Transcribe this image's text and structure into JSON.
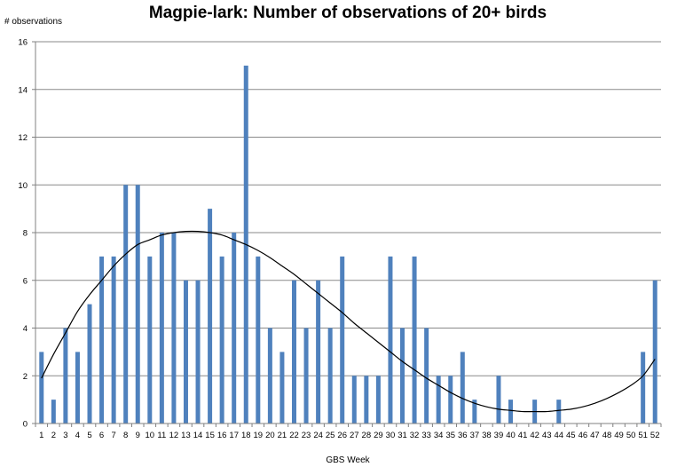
{
  "chart_data": {
    "type": "bar",
    "title": "Magpie-lark: Number of observations of 20+ birds",
    "xlabel": "GBS Week",
    "ylabel": "# observations",
    "ylim": [
      0,
      16
    ],
    "yticks": [
      0,
      2,
      4,
      6,
      8,
      10,
      12,
      14,
      16
    ],
    "grid": "horizontal",
    "legend": "none",
    "categories": [
      "1",
      "2",
      "3",
      "4",
      "5",
      "6",
      "7",
      "8",
      "9",
      "10",
      "11",
      "12",
      "13",
      "14",
      "15",
      "16",
      "17",
      "18",
      "19",
      "20",
      "21",
      "22",
      "23",
      "24",
      "25",
      "26",
      "27",
      "28",
      "29",
      "30",
      "31",
      "32",
      "33",
      "34",
      "35",
      "36",
      "37",
      "38",
      "39",
      "40",
      "41",
      "42",
      "43",
      "44",
      "45",
      "46",
      "47",
      "48",
      "49",
      "50",
      "51",
      "52"
    ],
    "values": [
      3,
      1,
      4,
      3,
      5,
      7,
      7,
      10,
      10,
      7,
      8,
      8,
      6,
      6,
      9,
      7,
      8,
      15,
      7,
      4,
      3,
      6,
      4,
      6,
      4,
      7,
      2,
      2,
      2,
      7,
      4,
      7,
      4,
      2,
      2,
      3,
      1,
      0,
      2,
      1,
      0,
      1,
      0,
      1,
      0,
      0,
      0,
      0,
      0,
      0,
      3,
      6
    ],
    "trendline": {
      "type": "polynomial",
      "x": [
        1,
        2,
        3,
        4,
        5,
        6,
        7,
        8,
        9,
        10,
        11,
        12,
        13,
        14,
        15,
        16,
        17,
        18,
        19,
        20,
        21,
        22,
        23,
        24,
        25,
        26,
        27,
        28,
        29,
        30,
        31,
        32,
        33,
        34,
        35,
        36,
        37,
        38,
        39,
        40,
        41,
        42,
        43,
        44,
        45,
        46,
        47,
        48,
        49,
        50,
        51,
        52
      ],
      "y": [
        1.9,
        2.9,
        3.8,
        4.7,
        5.4,
        6.0,
        6.6,
        7.1,
        7.5,
        7.7,
        7.9,
        8.0,
        8.05,
        8.05,
        8.0,
        7.9,
        7.7,
        7.5,
        7.25,
        6.95,
        6.6,
        6.25,
        5.85,
        5.45,
        5.05,
        4.65,
        4.2,
        3.8,
        3.4,
        3.0,
        2.6,
        2.25,
        1.9,
        1.6,
        1.3,
        1.05,
        0.85,
        0.7,
        0.6,
        0.55,
        0.5,
        0.5,
        0.5,
        0.55,
        0.6,
        0.7,
        0.85,
        1.05,
        1.3,
        1.6,
        2.0,
        2.7
      ]
    },
    "colors": {
      "bar": "#4f81bd",
      "trendline": "#000000",
      "grid": "#8a8a8a",
      "axis": "#808080"
    }
  }
}
